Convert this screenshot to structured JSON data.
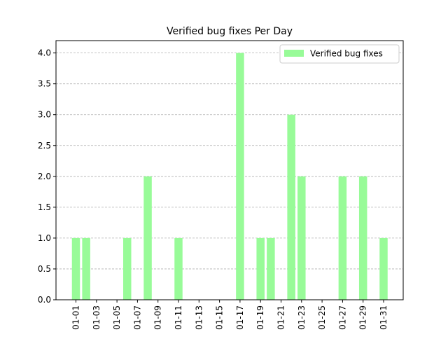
{
  "chart_data": {
    "type": "bar",
    "title": "Verified bug fixes Per Day",
    "xlabel": "",
    "ylabel": "",
    "ylim": [
      0,
      4.2
    ],
    "yticks": [
      "0.0",
      "0.5",
      "1.0",
      "1.5",
      "2.0",
      "2.5",
      "3.0",
      "3.5",
      "4.0"
    ],
    "grid": "y-dashed",
    "legend_position": "top-right",
    "xticks": [
      "01-01",
      "01-03",
      "01-05",
      "01-07",
      "01-09",
      "01-11",
      "01-13",
      "01-15",
      "01-17",
      "01-19",
      "01-21",
      "01-23",
      "01-25",
      "01-27",
      "01-29",
      "01-31"
    ],
    "categories": [
      "01-01",
      "01-02",
      "01-03",
      "01-04",
      "01-05",
      "01-06",
      "01-07",
      "01-08",
      "01-09",
      "01-10",
      "01-11",
      "01-12",
      "01-13",
      "01-14",
      "01-15",
      "01-16",
      "01-17",
      "01-18",
      "01-19",
      "01-20",
      "01-21",
      "01-22",
      "01-23",
      "01-24",
      "01-25",
      "01-26",
      "01-27",
      "01-28",
      "01-29",
      "01-30",
      "01-31"
    ],
    "series": [
      {
        "name": "Verified bug fixes",
        "color": "#98fb98",
        "values": [
          1,
          1,
          0,
          0,
          0,
          1,
          0,
          2,
          0,
          0,
          1,
          0,
          0,
          0,
          0,
          0,
          4,
          0,
          1,
          1,
          0,
          3,
          2,
          0,
          0,
          0,
          2,
          0,
          2,
          0,
          1
        ]
      }
    ]
  }
}
